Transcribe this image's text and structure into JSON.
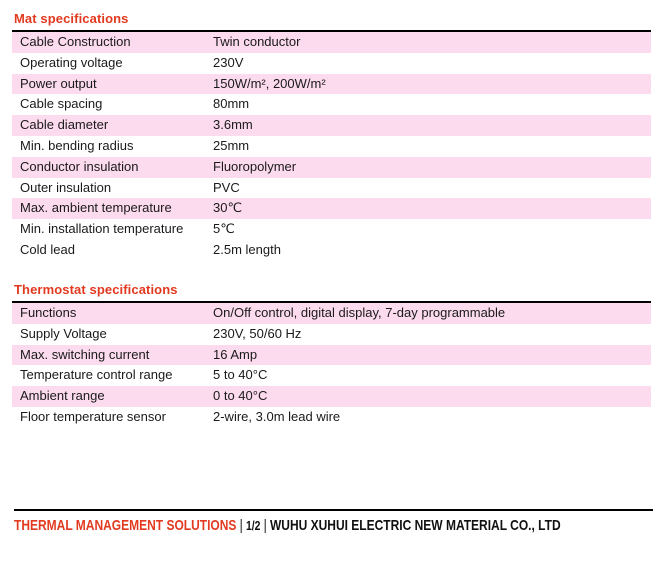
{
  "colors": {
    "accent_red": "#e23a20",
    "row_pink": "#fcdbee",
    "text": "#1a1a1a",
    "rule": "#000000"
  },
  "sections": [
    {
      "title": "Mat specifications",
      "rows": [
        {
          "label": "Cable Construction",
          "value": "Twin conductor",
          "shaded": true
        },
        {
          "label": "Operating voltage",
          "value": "230V",
          "shaded": false
        },
        {
          "label": "Power output",
          "value": "150W/m², 200W/m²",
          "shaded": true
        },
        {
          "label": "Cable spacing",
          "value": "80mm",
          "shaded": false
        },
        {
          "label": "Cable diameter",
          "value": "3.6mm",
          "shaded": true
        },
        {
          "label": "Min. bending radius",
          "value": "25mm",
          "shaded": false
        },
        {
          "label": "Conductor insulation",
          "value": "Fluoropolymer",
          "shaded": true
        },
        {
          "label": "Outer insulation",
          "value": "PVC",
          "shaded": false
        },
        {
          "label": "Max. ambient temperature",
          "value": "30℃",
          "shaded": true
        },
        {
          "label": "Min. installation temperature",
          "value": "5℃",
          "shaded": false
        },
        {
          "label": "Cold lead",
          "value": "2.5m length",
          "shaded": false
        }
      ]
    },
    {
      "title": "Thermostat specifications",
      "rows": [
        {
          "label": "Functions",
          "value": "On/Off control, digital display, 7-day programmable",
          "shaded": true
        },
        {
          "label": "Supply Voltage",
          "value": "230V, 50/60 Hz",
          "shaded": false
        },
        {
          "label": "Max. switching current",
          "value": "16 Amp",
          "shaded": true
        },
        {
          "label": "Temperature control range",
          "value": "5 to 40°C",
          "shaded": false
        },
        {
          "label": "Ambient range",
          "value": "0 to 40°C",
          "shaded": true
        },
        {
          "label": "Floor temperature sensor",
          "value": "2-wire, 3.0m lead wire",
          "shaded": false
        }
      ]
    }
  ],
  "footer": {
    "brand": "THERMAL MANAGEMENT SOLUTIONS",
    "separator": "|",
    "page": "1/2",
    "company": "WUHU XUHUI ELECTRIC NEW MATERIAL CO., LTD"
  }
}
